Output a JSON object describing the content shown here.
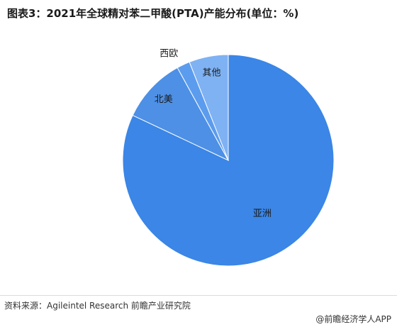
{
  "title": "图表3：2021年全球精对苯二甲酸(PTA)产能分布(单位：%)",
  "source": "资料来源：Agileintel Research 前瞻产业研究院",
  "credit": "@前瞻经济学人APP",
  "colors": {
    "asia": "#3b86e6",
    "north_america": "#4d90e6",
    "western_europe": "#5c9cee",
    "other": "#7fb2f3"
  },
  "chart_data": {
    "type": "pie",
    "title": "图表3：2021年全球精对苯二甲酸(PTA)产能分布(单位：%)",
    "start_angle_deg": 0,
    "direction": "clockwise",
    "slices": [
      {
        "label": "亚洲",
        "value": 82,
        "color": "#3b86e6"
      },
      {
        "label": "北美",
        "value": 10,
        "color": "#4d90e6"
      },
      {
        "label": "西欧",
        "value": 2,
        "color": "#5c9cee"
      },
      {
        "label": "其他",
        "value": 6,
        "color": "#7fb2f3"
      }
    ]
  }
}
